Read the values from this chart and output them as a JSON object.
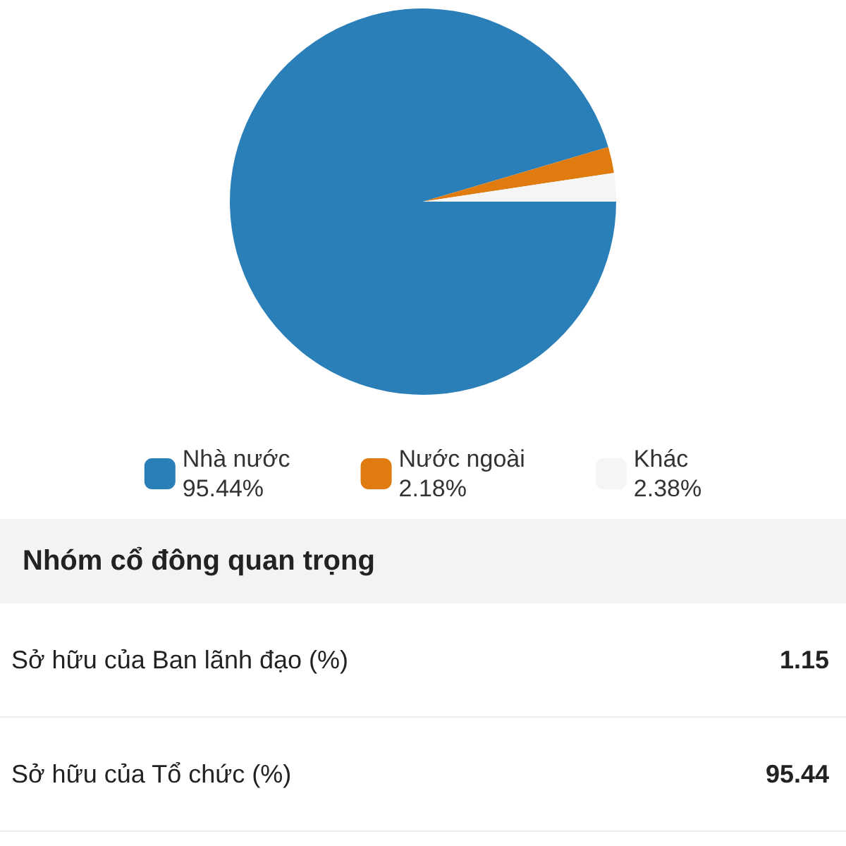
{
  "chart_data": [
    {
      "type": "pie",
      "categories": [
        "Nhà nước",
        "Nước ngoài",
        "Khác"
      ],
      "values": [
        95.44,
        2.18,
        2.38
      ],
      "colors": [
        "#2a7fb8",
        "#e07b0f",
        "#f5f5f5"
      ],
      "value_labels": [
        "95.44%",
        "2.18%",
        "2.38%"
      ],
      "legend": "bottom"
    },
    {
      "type": "other",
      "title": "Nhóm cổ đông quan trọng",
      "annotations": [
        "Sở hữu của Ban lãnh đạo (%)",
        "1.15",
        "Sở hữu của Tổ chức (%)",
        "95.44"
      ]
    }
  ]
}
